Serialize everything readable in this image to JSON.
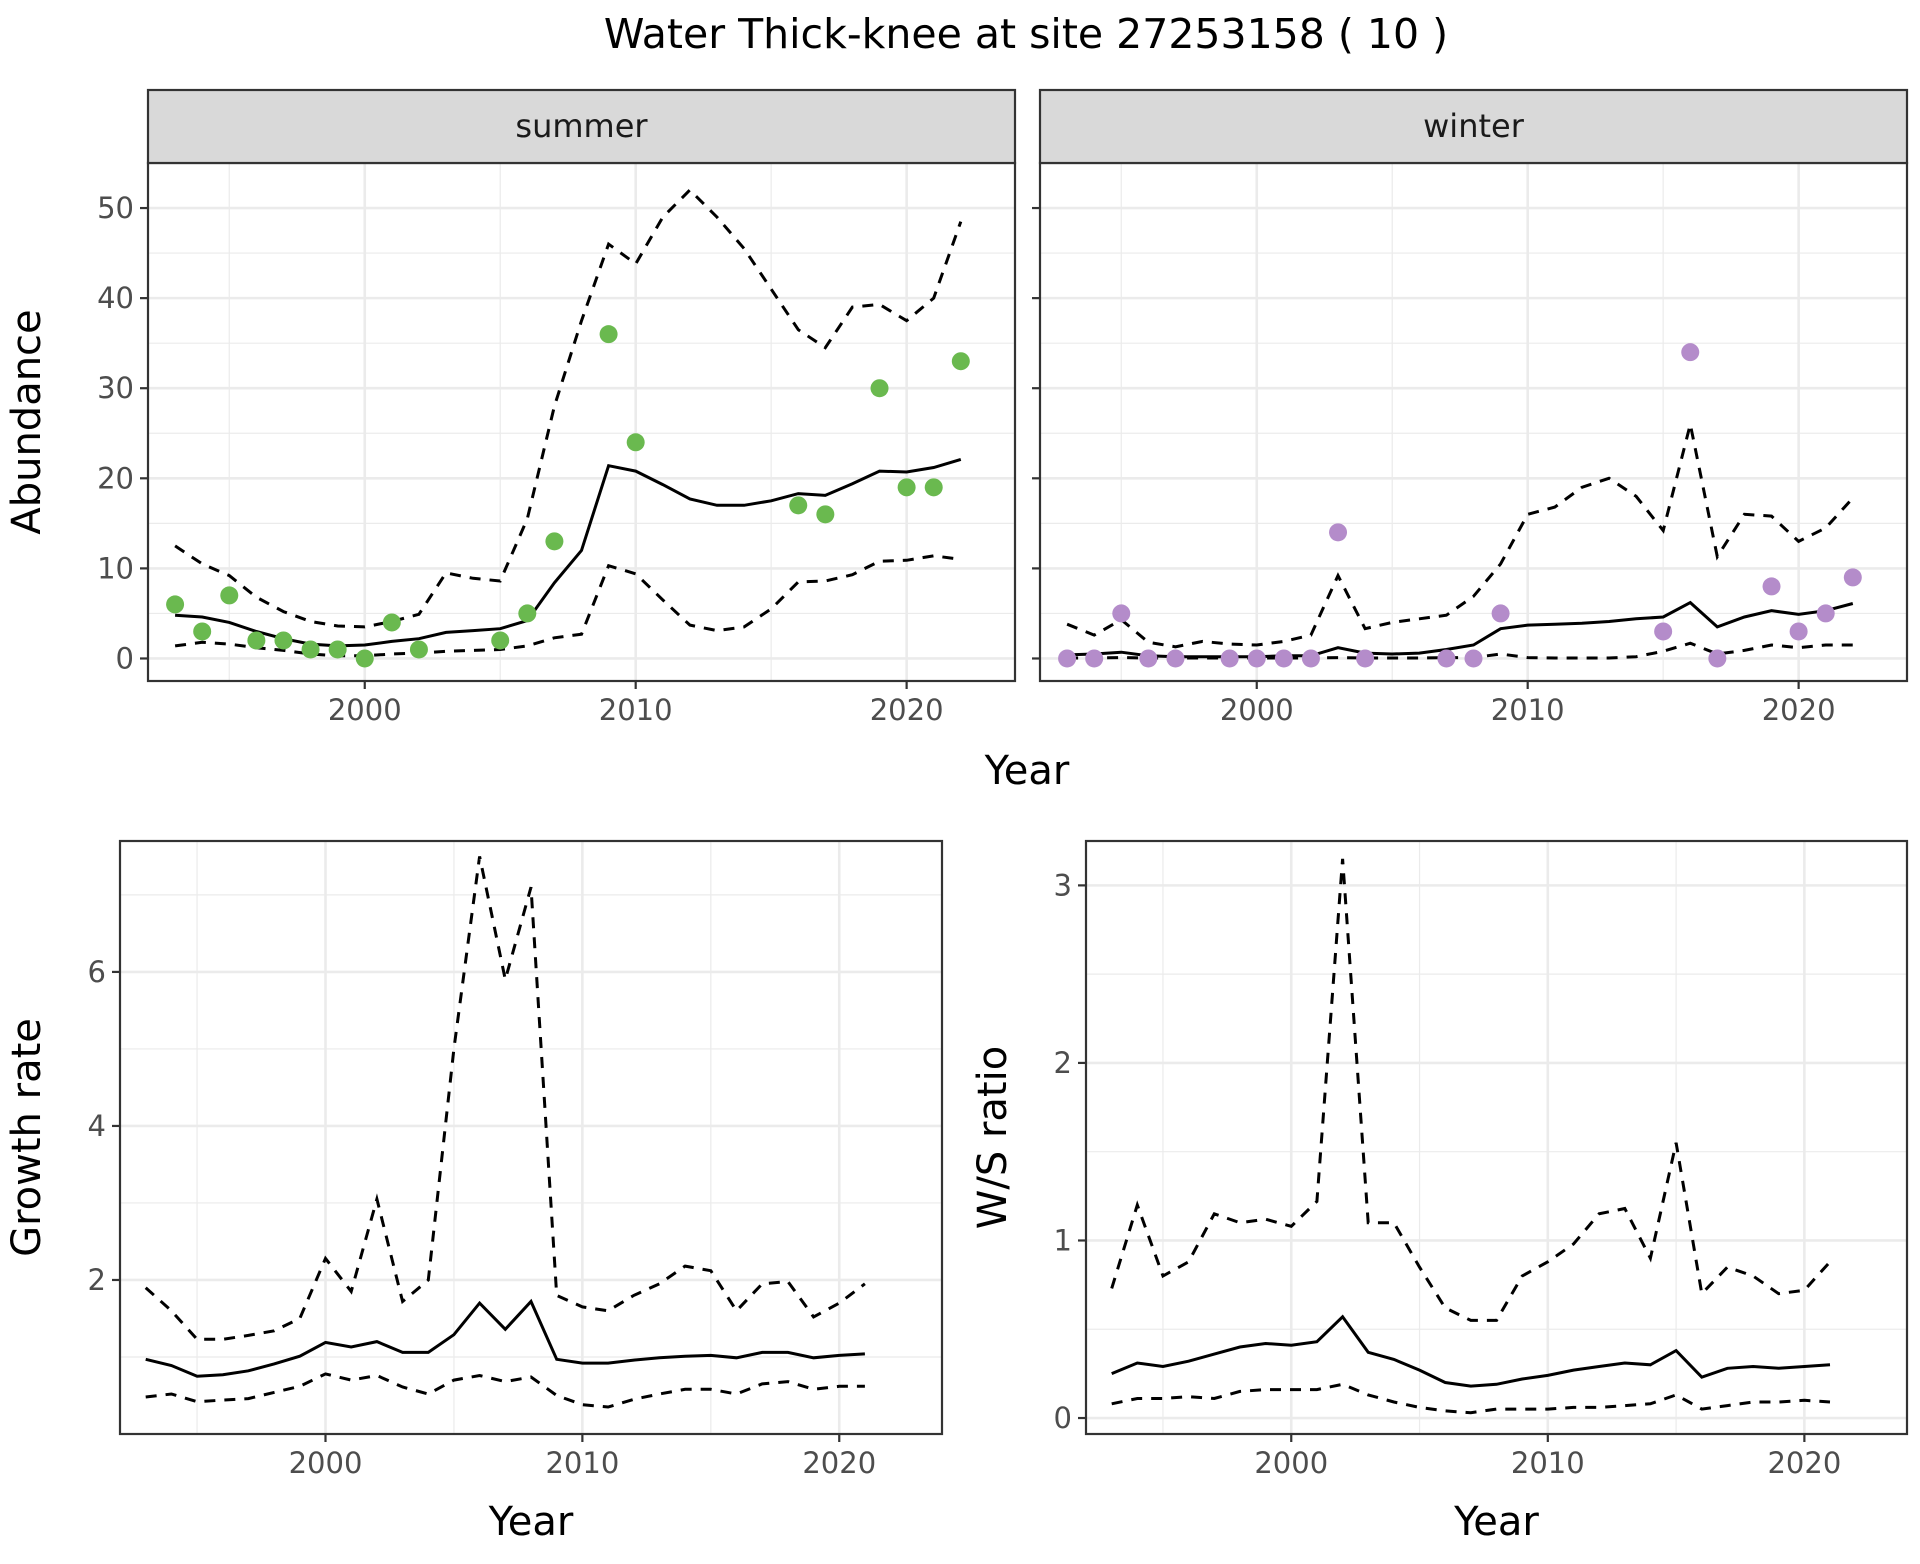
{
  "title": "Water Thick-knee at site 27253158 ( 10 )",
  "colors": {
    "summer_points": "#6ab94f",
    "winter_points": "#b48cca",
    "line": "#000000",
    "grid": "#ebebeb",
    "strip_fill": "#d9d9d9"
  },
  "chart_data": [
    {
      "type": "line",
      "name": "summer",
      "strip_label": "summer",
      "xlabel": "Year",
      "ylabel": "Abundance",
      "xlim": [
        1992,
        2024
      ],
      "ylim": [
        -2.5,
        55
      ],
      "x_ticks": [
        2000,
        2010,
        2020
      ],
      "y_ticks": [
        0,
        10,
        20,
        30,
        40,
        50
      ],
      "grid": true,
      "years": [
        1993,
        1994,
        1995,
        1996,
        1997,
        1998,
        1999,
        2000,
        2001,
        2002,
        2003,
        2004,
        2005,
        2006,
        2007,
        2008,
        2009,
        2010,
        2011,
        2012,
        2013,
        2014,
        2015,
        2016,
        2017,
        2018,
        2019,
        2020,
        2021,
        2022
      ],
      "mean": [
        4.8,
        4.6,
        4,
        3,
        2.2,
        1.6,
        1.4,
        1.5,
        1.9,
        2.2,
        2.9,
        3.1,
        3.3,
        4.2,
        8.4,
        12,
        21.4,
        20.8,
        19.3,
        17.7,
        17,
        17,
        17.5,
        18.3,
        18.1,
        19.4,
        20.8,
        20.7,
        21.2,
        22.1
      ],
      "upper": [
        12.5,
        10.5,
        9.2,
        6.8,
        5.2,
        4.1,
        3.6,
        3.5,
        4.1,
        4.9,
        9.5,
        8.9,
        8.6,
        15.5,
        28,
        37.5,
        46,
        43.8,
        49,
        52,
        49,
        45.5,
        41,
        36.5,
        34.5,
        39,
        39.3,
        37.5,
        40,
        48.5
      ],
      "lower": [
        1.4,
        1.8,
        1.6,
        1.2,
        0.9,
        0.5,
        0.3,
        0.3,
        0.5,
        0.6,
        0.8,
        0.9,
        1,
        1.4,
        2.3,
        2.7,
        10.3,
        9.4,
        6.5,
        3.7,
        3.1,
        3.5,
        5.5,
        8.5,
        8.6,
        9.3,
        10.8,
        10.9,
        11.4,
        11
      ],
      "points": {
        "x": [
          1993,
          1994,
          1995,
          1996,
          1997,
          1998,
          1999,
          2000,
          2001,
          2002,
          2005,
          2006,
          2007,
          2009,
          2010,
          2016,
          2017,
          2019,
          2020,
          2021,
          2022
        ],
        "y": [
          6,
          3,
          7,
          2,
          2,
          1,
          1,
          0,
          4,
          1,
          2,
          5,
          13,
          36,
          24,
          17,
          16,
          30,
          19,
          19,
          33
        ]
      }
    },
    {
      "type": "line",
      "name": "winter",
      "strip_label": "winter",
      "xlabel": "Year",
      "xlim": [
        1992,
        2024
      ],
      "ylim": [
        -2.5,
        55
      ],
      "x_ticks": [
        2000,
        2010,
        2020
      ],
      "y_ticks": [
        0,
        10,
        20,
        30,
        40,
        50
      ],
      "grid": true,
      "years": [
        1993,
        1994,
        1995,
        1996,
        1997,
        1998,
        1999,
        2000,
        2001,
        2002,
        2003,
        2004,
        2005,
        2006,
        2007,
        2008,
        2009,
        2010,
        2011,
        2012,
        2013,
        2014,
        2015,
        2016,
        2017,
        2018,
        2019,
        2020,
        2021,
        2022
      ],
      "mean": [
        0.4,
        0.5,
        0.7,
        0.3,
        0.2,
        0.2,
        0.2,
        0.2,
        0.3,
        0.3,
        1.2,
        0.6,
        0.5,
        0.6,
        1,
        1.5,
        3.3,
        3.7,
        3.8,
        3.9,
        4.1,
        4.4,
        4.6,
        6.2,
        3.5,
        4.6,
        5.3,
        4.9,
        5.3,
        6.1
      ],
      "upper": [
        3.8,
        2.6,
        4.3,
        1.8,
        1.3,
        1.9,
        1.6,
        1.5,
        1.9,
        2.6,
        9.2,
        3.3,
        4,
        4.4,
        4.8,
        6.9,
        10.5,
        16,
        16.8,
        19,
        20,
        18,
        14.2,
        26,
        11.3,
        16,
        15.8,
        13,
        14.5,
        17.8
      ],
      "lower": [
        0.05,
        0.05,
        0.1,
        0.05,
        0.05,
        0.05,
        0.05,
        0.05,
        0.05,
        0.05,
        0.1,
        0.05,
        0.05,
        0.05,
        0.1,
        0.1,
        0.5,
        0.1,
        0.05,
        0.05,
        0.05,
        0.2,
        0.8,
        1.7,
        0.5,
        0.9,
        1.5,
        1.2,
        1.5,
        1.5
      ],
      "points": {
        "x": [
          1993,
          1994,
          1995,
          1996,
          1997,
          1999,
          2000,
          2001,
          2002,
          2003,
          2004,
          2007,
          2008,
          2009,
          2015,
          2016,
          2017,
          2019,
          2020,
          2021,
          2022
        ],
        "y": [
          0,
          0,
          5,
          0,
          0,
          0,
          0,
          0,
          0,
          14,
          0,
          0,
          0,
          5,
          3,
          34,
          0,
          8,
          3,
          5,
          9
        ]
      }
    },
    {
      "type": "line",
      "name": "growth",
      "xlabel": "Year",
      "ylabel": "Growth rate",
      "xlim": [
        1992,
        2024
      ],
      "ylim": [
        0,
        7.7
      ],
      "x_ticks": [
        2000,
        2010,
        2020
      ],
      "y_ticks": [
        2,
        4,
        6
      ],
      "grid": true,
      "years": [
        1993,
        1994,
        1995,
        1996,
        1997,
        1998,
        1999,
        2000,
        2001,
        2002,
        2003,
        2004,
        2005,
        2006,
        2007,
        2008,
        2009,
        2010,
        2011,
        2012,
        2013,
        2014,
        2015,
        2016,
        2017,
        2018,
        2019,
        2020,
        2021
      ],
      "mean": [
        0.97,
        0.89,
        0.75,
        0.77,
        0.82,
        0.91,
        1.01,
        1.19,
        1.13,
        1.2,
        1.06,
        1.06,
        1.29,
        1.7,
        1.36,
        1.72,
        0.97,
        0.92,
        0.92,
        0.96,
        0.99,
        1.01,
        1.02,
        0.99,
        1.06,
        1.06,
        0.99,
        1.02,
        1.04
      ],
      "upper": [
        1.9,
        1.6,
        1.23,
        1.23,
        1.28,
        1.34,
        1.5,
        2.28,
        1.85,
        3.05,
        1.72,
        2,
        5,
        7.5,
        5.9,
        7.1,
        1.8,
        1.65,
        1.6,
        1.8,
        1.95,
        2.18,
        2.12,
        1.6,
        1.95,
        1.98,
        1.52,
        1.7,
        1.95
      ],
      "lower": [
        0.48,
        0.52,
        0.42,
        0.44,
        0.46,
        0.54,
        0.62,
        0.78,
        0.7,
        0.76,
        0.61,
        0.52,
        0.7,
        0.76,
        0.68,
        0.74,
        0.5,
        0.38,
        0.35,
        0.45,
        0.52,
        0.58,
        0.58,
        0.52,
        0.65,
        0.68,
        0.58,
        0.62,
        0.62
      ]
    },
    {
      "type": "line",
      "name": "ws_ratio",
      "xlabel": "Year",
      "ylabel": "W/S ratio",
      "xlim": [
        1992,
        2024
      ],
      "ylim": [
        -0.09,
        3.25
      ],
      "x_ticks": [
        2000,
        2010,
        2020
      ],
      "y_ticks": [
        0,
        1,
        2,
        3
      ],
      "grid": true,
      "years": [
        1993,
        1994,
        1995,
        1996,
        1997,
        1998,
        1999,
        2000,
        2001,
        2002,
        2003,
        2004,
        2005,
        2006,
        2007,
        2008,
        2009,
        2010,
        2011,
        2012,
        2013,
        2014,
        2015,
        2016,
        2017,
        2018,
        2019,
        2020,
        2021
      ],
      "mean": [
        0.25,
        0.31,
        0.29,
        0.32,
        0.36,
        0.4,
        0.42,
        0.41,
        0.43,
        0.57,
        0.37,
        0.33,
        0.27,
        0.2,
        0.18,
        0.19,
        0.22,
        0.24,
        0.27,
        0.29,
        0.31,
        0.3,
        0.38,
        0.23,
        0.28,
        0.29,
        0.28,
        0.29,
        0.3
      ],
      "upper": [
        0.73,
        1.2,
        0.8,
        0.88,
        1.15,
        1.1,
        1.12,
        1.08,
        1.22,
        3.15,
        1.1,
        1.1,
        0.85,
        0.62,
        0.55,
        0.55,
        0.8,
        0.88,
        0.98,
        1.15,
        1.18,
        0.9,
        1.55,
        0.7,
        0.85,
        0.8,
        0.7,
        0.72,
        0.88
      ],
      "lower": [
        0.08,
        0.11,
        0.11,
        0.12,
        0.11,
        0.15,
        0.16,
        0.16,
        0.16,
        0.19,
        0.13,
        0.09,
        0.06,
        0.04,
        0.03,
        0.05,
        0.05,
        0.05,
        0.06,
        0.06,
        0.07,
        0.08,
        0.13,
        0.05,
        0.07,
        0.09,
        0.09,
        0.1,
        0.09
      ]
    }
  ]
}
